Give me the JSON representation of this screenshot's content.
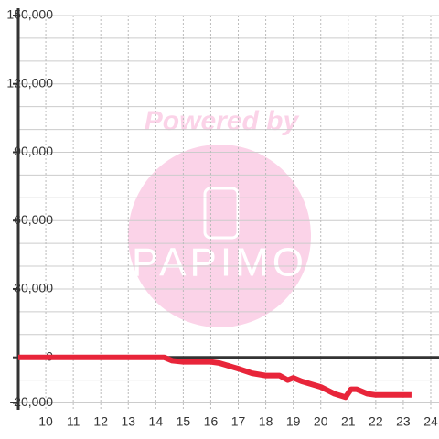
{
  "chart_data": {
    "type": "line",
    "watermark": {
      "line1": "Powered by",
      "line2": "PAPIMO"
    },
    "x": [
      9,
      14.3,
      14.6,
      15,
      16,
      16.3,
      17,
      17.5,
      18,
      18.5,
      18.8,
      19,
      19.3,
      20,
      20.5,
      20.9,
      21.1,
      21.3,
      21.7,
      22,
      23.3
    ],
    "series": [
      {
        "color": "#e8253a",
        "values": [
          0,
          0,
          -1500,
          -2000,
          -2000,
          -2500,
          -5000,
          -7000,
          -8000,
          -8000,
          -10000,
          -9000,
          -10500,
          -13000,
          -16000,
          -17500,
          -14000,
          -14000,
          -16000,
          -16500,
          -16500
        ]
      }
    ],
    "xlim": [
      9,
      24.3
    ],
    "xticks": [
      10,
      11,
      12,
      13,
      14,
      15,
      16,
      17,
      18,
      19,
      20,
      21,
      22,
      23,
      24
    ],
    "ylim": [
      -23000,
      150000
    ],
    "yticks": [
      {
        "value": 150000,
        "label": "150,000"
      },
      {
        "value": 120000,
        "label": "120,000"
      },
      {
        "value": 90000,
        "label": "90,000"
      },
      {
        "value": 60000,
        "label": "60,000"
      },
      {
        "value": 30000,
        "label": "30,000"
      },
      0,
      {
        "value": -20000,
        "label": "-20,000"
      }
    ],
    "ygrid": [
      -20000,
      -10000,
      10000,
      20000,
      30000,
      40000,
      50000,
      60000,
      70000,
      80000,
      90000,
      100000,
      110000,
      120000,
      130000,
      140000,
      150000
    ],
    "grid": true
  }
}
